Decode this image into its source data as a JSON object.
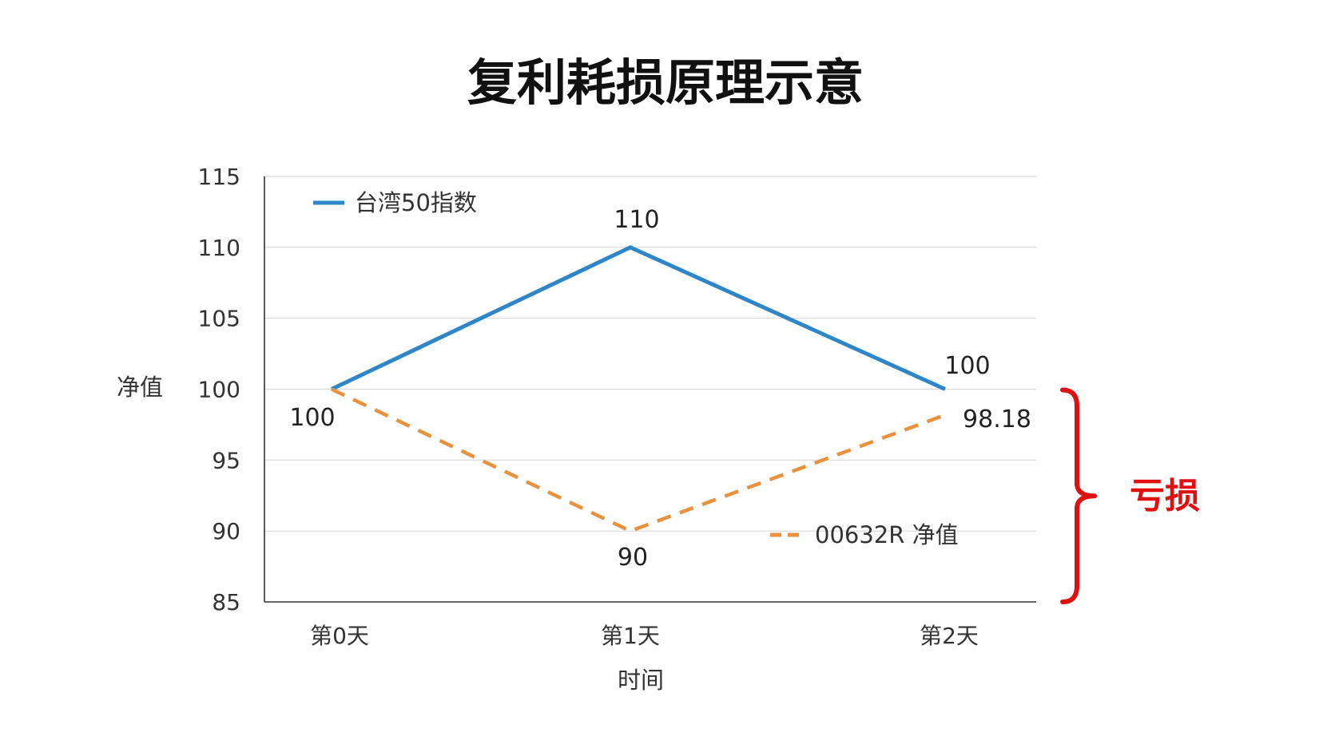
{
  "chart_data": {
    "type": "line",
    "title": "复利耗损原理示意",
    "xlabel": "时间",
    "ylabel": "净值",
    "categories": [
      "第0天",
      "第1天",
      "第2天"
    ],
    "ylim": [
      85,
      115
    ],
    "yticks": [
      115,
      110,
      105,
      100,
      95,
      90,
      85
    ],
    "grid": true,
    "series": [
      {
        "name": "台湾50指数",
        "values": [
          100,
          110,
          100
        ],
        "labels": [
          "",
          "110",
          "100"
        ],
        "color": "#2E86C8",
        "style": "solid"
      },
      {
        "name": "00632R 净值",
        "values": [
          100,
          90,
          98.18
        ],
        "labels": [
          "100",
          "90",
          "98.18"
        ],
        "color": "#E8923F",
        "style": "dashed"
      }
    ],
    "legend": [
      "top-left",
      "bottom-right"
    ],
    "annotation": {
      "text": "亏损",
      "color": "#E01010",
      "range": [
        85,
        100
      ]
    }
  }
}
